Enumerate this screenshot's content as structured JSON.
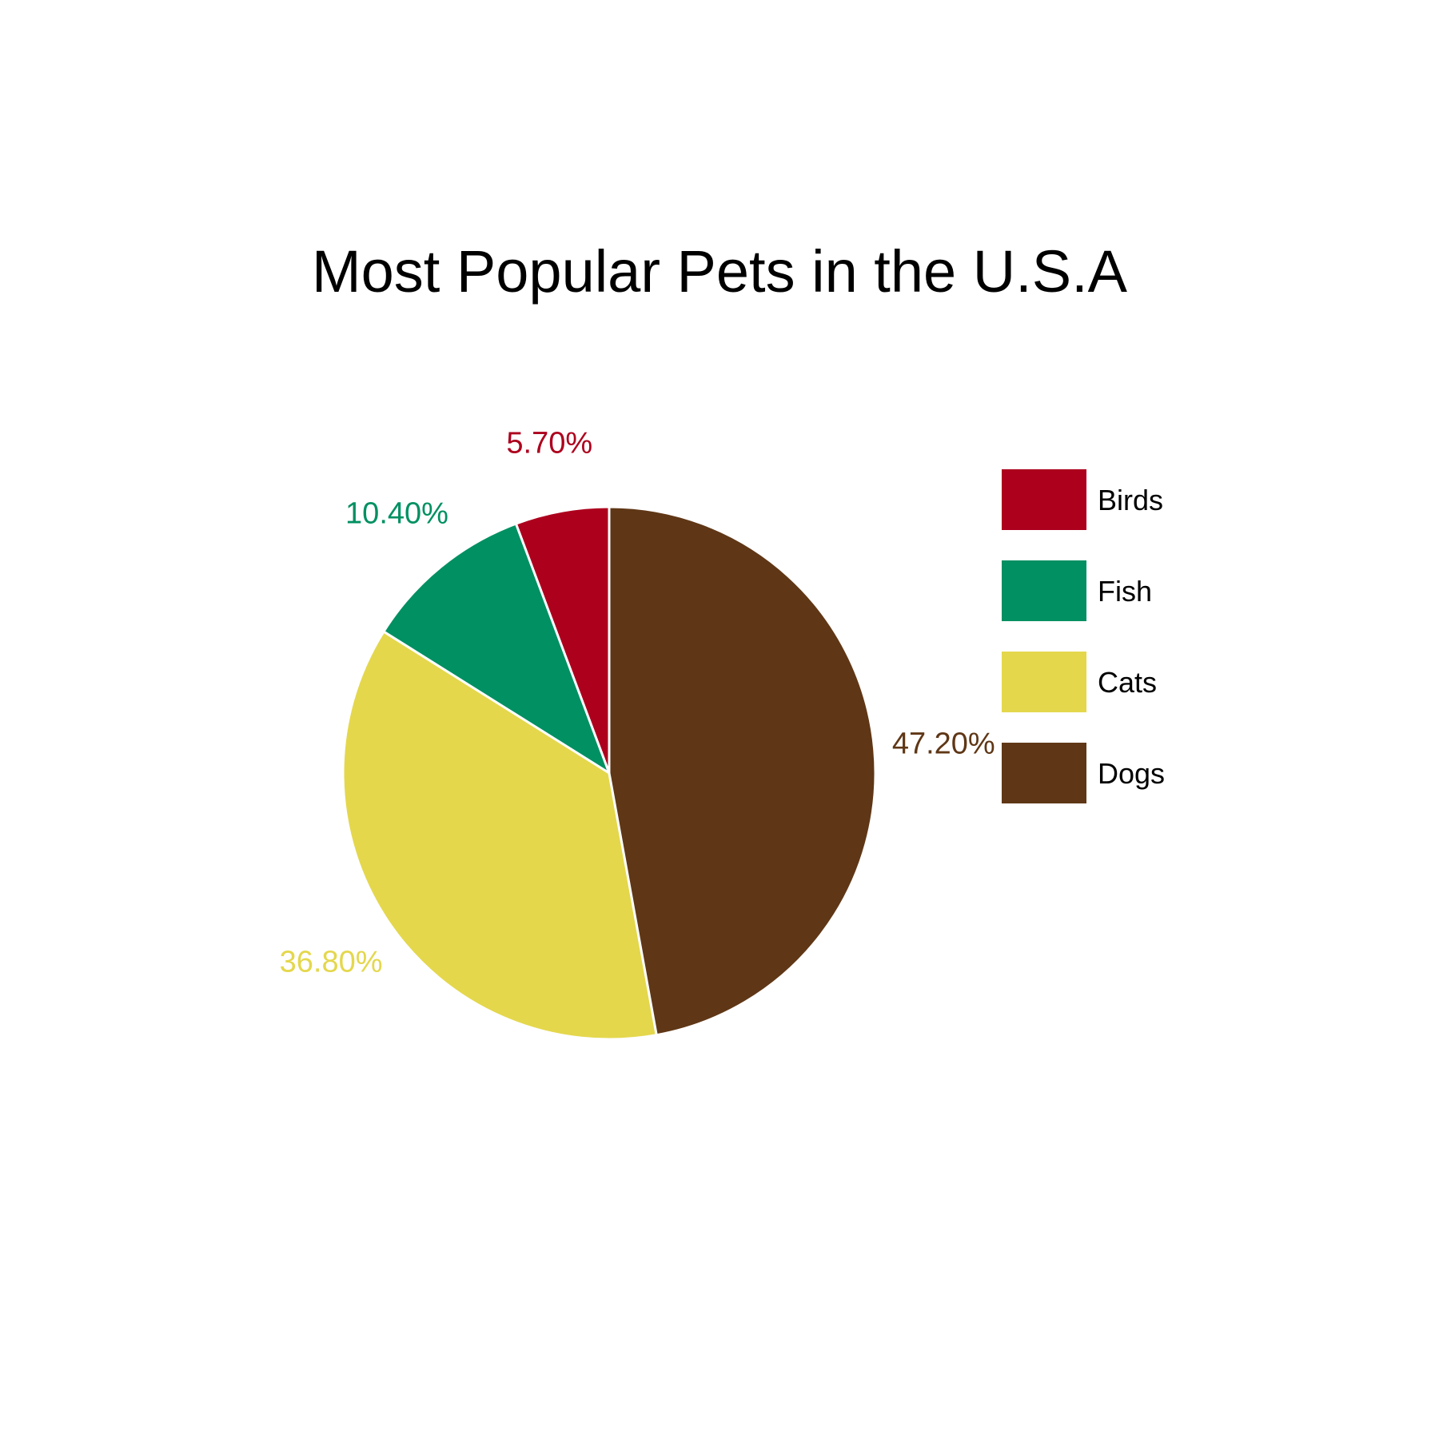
{
  "chart_data": {
    "type": "pie",
    "title": "Most Popular Pets in the U.S.A",
    "categories": [
      "Birds",
      "Fish",
      "Cats",
      "Dogs"
    ],
    "values": [
      5.7,
      10.4,
      36.8,
      47.2
    ],
    "value_labels": [
      "5.70%",
      "10.40%",
      "36.80%",
      "47.20%"
    ],
    "colors": [
      "#ad001d",
      "#009062",
      "#e4d74c",
      "#5f3716"
    ],
    "legend": {
      "position": "right",
      "entries": [
        "Birds",
        "Fish",
        "Cats",
        "Dogs"
      ]
    }
  }
}
